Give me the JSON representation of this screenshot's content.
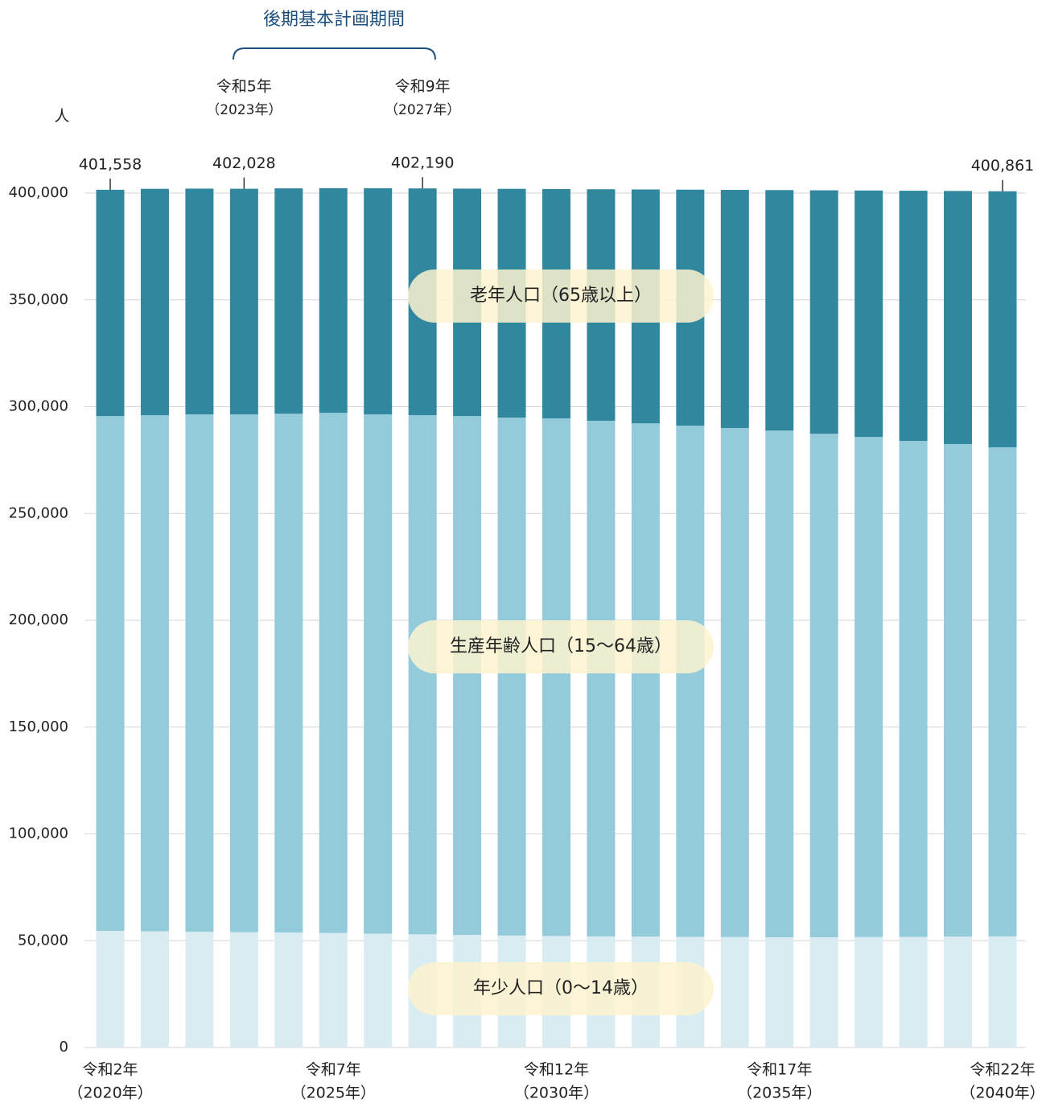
{
  "chart_data": {
    "type": "stacked_bar",
    "y_axis_label": "人",
    "period_label": "後期基本計画期間",
    "period_marks": [
      {
        "label": "令和5年",
        "sublabel": "（2023年）"
      },
      {
        "label": "令和9年",
        "sublabel": "（2027年）"
      }
    ],
    "categories": [
      "令和2年",
      null,
      null,
      null,
      null,
      "令和7年",
      null,
      null,
      null,
      null,
      "令和12年",
      null,
      null,
      null,
      null,
      "令和17年",
      null,
      null,
      null,
      null,
      "令和22年"
    ],
    "category_sublabels": [
      "（2020年）",
      null,
      null,
      null,
      null,
      "（2025年）",
      null,
      null,
      null,
      null,
      "（2030年）",
      null,
      null,
      null,
      null,
      "（2035年）",
      null,
      null,
      null,
      null,
      "（2040年）"
    ],
    "series": [
      {
        "name": "年少人口（0〜14歳）",
        "color": "#d9ecf2",
        "values": [
          54600,
          54400,
          54200,
          54000,
          53800,
          53600,
          53300,
          53000,
          52700,
          52400,
          52200,
          52000,
          51900,
          51800,
          51700,
          51600,
          51600,
          51700,
          51800,
          51900,
          52000
        ]
      },
      {
        "name": "生産年齢人口（15〜64歳）",
        "color": "#93cbdb",
        "values": [
          241000,
          241600,
          242200,
          242400,
          242900,
          243500,
          243100,
          243000,
          242900,
          242500,
          242300,
          241400,
          240300,
          239300,
          238300,
          237200,
          235700,
          234100,
          232200,
          230600,
          229000
        ]
      },
      {
        "name": "老年人口（65歳以上）",
        "color": "#31879e",
        "values": [
          105958,
          106000,
          105700,
          105628,
          105500,
          105200,
          105850,
          106190,
          106500,
          107100,
          107400,
          108400,
          109500,
          110500,
          111500,
          112600,
          114000,
          115400,
          117100,
          118500,
          119861
        ]
      }
    ],
    "totals": [
      401558,
      null,
      null,
      402028,
      null,
      null,
      null,
      402190,
      null,
      null,
      null,
      null,
      null,
      null,
      null,
      null,
      null,
      null,
      null,
      null,
      400861
    ],
    "total_labels": [
      "401,558",
      null,
      null,
      "402,028",
      null,
      null,
      null,
      "402,190",
      null,
      null,
      null,
      null,
      null,
      null,
      null,
      null,
      null,
      null,
      null,
      null,
      "400,861"
    ],
    "ylim": [
      0,
      400000
    ],
    "yticks": [
      0,
      {
        "value": 50000,
        "label": "50,000"
      },
      {
        "value": 100000,
        "label": "100,000"
      },
      {
        "value": 150000,
        "label": "150,000"
      },
      {
        "value": 200000,
        "label": "200,000"
      },
      {
        "value": 250000,
        "label": "250,000"
      },
      {
        "value": 300000,
        "label": "300,000"
      },
      {
        "value": 350000,
        "label": "350,000"
      },
      {
        "value": 400000,
        "label": "400,000"
      }
    ],
    "grid": true
  }
}
